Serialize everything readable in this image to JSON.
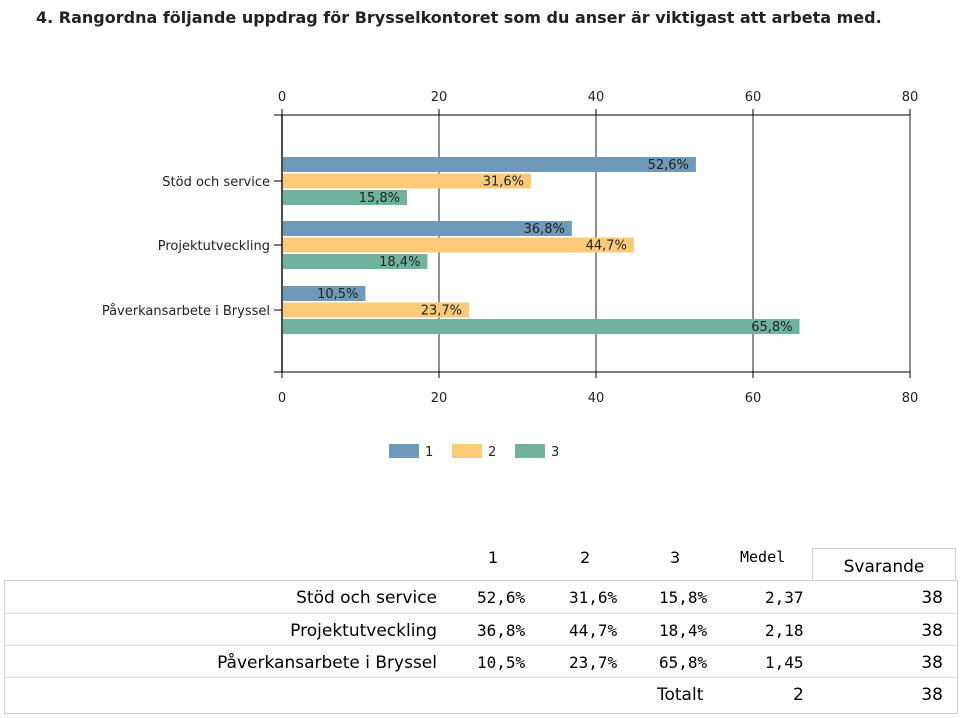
{
  "question": {
    "title": "4. Rangordna följande uppdrag för Brysselkontoret som du anser är viktigast att arbeta med."
  },
  "chart_data": {
    "type": "bar",
    "orientation": "horizontal",
    "categories": [
      "Stöd och service",
      "Projektutveckling",
      "Påverkansarbete i Bryssel"
    ],
    "series": [
      {
        "name": "1",
        "values": [
          52.6,
          36.8,
          10.5
        ],
        "labels": [
          "52,6%",
          "36,8%",
          "10,5%"
        ],
        "color": "#6f99b8"
      },
      {
        "name": "2",
        "values": [
          31.6,
          44.7,
          23.7
        ],
        "labels": [
          "31,6%",
          "44,7%",
          "23,7%"
        ],
        "color": "#fbcb7a"
      },
      {
        "name": "3",
        "values": [
          15.8,
          18.4,
          65.8
        ],
        "labels": [
          "15,8%",
          "18,4%",
          "65,8%"
        ],
        "color": "#6fb39f"
      }
    ],
    "xlim": [
      0,
      80
    ],
    "ticks": [
      "0",
      "20",
      "40",
      "60",
      "80"
    ],
    "tick_values": [
      0,
      20,
      40,
      60,
      80
    ],
    "grid": true,
    "legend_position": "bottom"
  },
  "table": {
    "headers": [
      "1",
      "2",
      "3",
      "Medel",
      "Svarande"
    ],
    "rows": [
      {
        "label": "Stöd och service",
        "v1": "52,6%",
        "v2": "31,6%",
        "v3": "15,8%",
        "medel": "2,37",
        "svarande": "38"
      },
      {
        "label": "Projektutveckling",
        "v1": "36,8%",
        "v2": "44,7%",
        "v3": "18,4%",
        "medel": "2,18",
        "svarande": "38"
      },
      {
        "label": "Påverkansarbete i Bryssel",
        "v1": "10,5%",
        "v2": "23,7%",
        "v3": "65,8%",
        "medel": "1,45",
        "svarande": "38"
      }
    ],
    "total": {
      "label": "Totalt",
      "medel": "2",
      "svarande": "38"
    }
  }
}
